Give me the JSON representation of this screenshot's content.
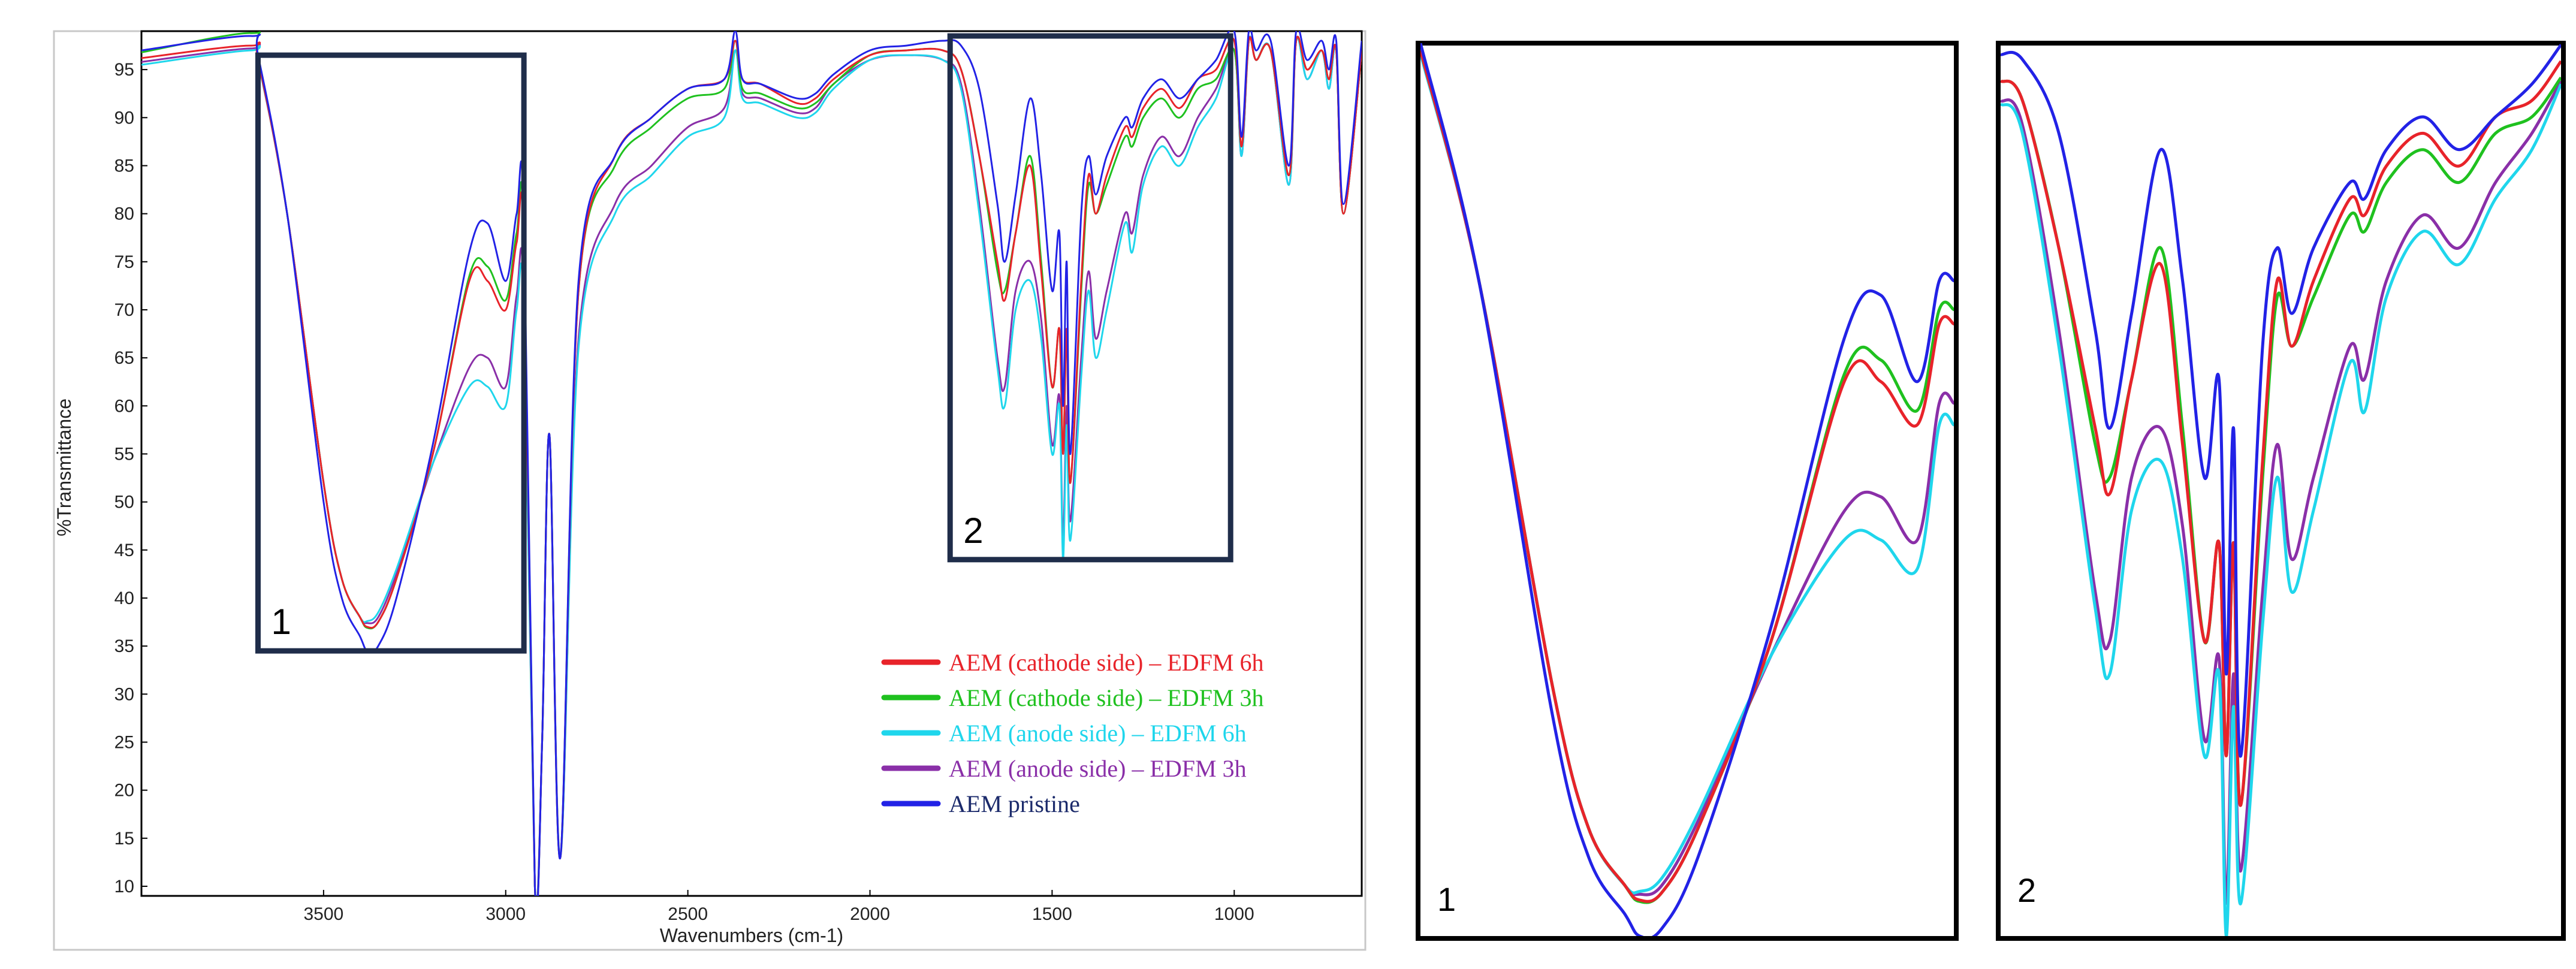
{
  "chart_data": [
    {
      "type": "line",
      "panel": "main",
      "xlabel": "Wavenumbers (cm-1)",
      "ylabel": "%Transmittance",
      "xlim": [
        4000,
        650
      ],
      "ylim": [
        9,
        99
      ],
      "x_reversed": true,
      "x_ticks": [
        "3500",
        "3000",
        "2500",
        "2000",
        "1500",
        "1000"
      ],
      "y_ticks": [
        "10",
        "15",
        "20",
        "25",
        "30",
        "35",
        "40",
        "45",
        "50",
        "55",
        "60",
        "65",
        "70",
        "75",
        "80",
        "85",
        "90",
        "95"
      ],
      "grid": false,
      "legend_placement": "bottom-right",
      "zoom_boxes": [
        {
          "label": "1",
          "x_range": [
            3680,
            2950
          ],
          "y_range": [
            34.5,
            96.5
          ]
        },
        {
          "label": "2",
          "x_range": [
            1780,
            1010
          ],
          "y_range": [
            44,
            98.5
          ]
        }
      ],
      "x": [
        4000,
        3700,
        3680,
        3600,
        3500,
        3450,
        3400,
        3380,
        3350,
        3300,
        3200,
        3100,
        3050,
        3000,
        2970,
        2950,
        2920,
        2900,
        2880,
        2850,
        2800,
        2700,
        2600,
        2500,
        2400,
        2370,
        2350,
        2300,
        2200,
        2150,
        2100,
        2000,
        1900,
        1800,
        1750,
        1700,
        1650,
        1630,
        1600,
        1560,
        1530,
        1500,
        1480,
        1470,
        1460,
        1450,
        1420,
        1400,
        1380,
        1350,
        1300,
        1280,
        1250,
        1200,
        1150,
        1100,
        1050,
        1000,
        980,
        960,
        940,
        900,
        850,
        830,
        800,
        760,
        740,
        720,
        700,
        650
      ],
      "series": [
        {
          "name": "AEM (cathode side) – EDFM 6h",
          "color": "#e8232a",
          "values": [
            96.2,
            97.5,
            96,
            80,
            52,
            42,
            38,
            37,
            37.5,
            42,
            55,
            73,
            73,
            70,
            77,
            77,
            10,
            25,
            57,
            13,
            72,
            86,
            90,
            93,
            94,
            98,
            94,
            93.5,
            91.5,
            92,
            94,
            96.5,
            97,
            97,
            95,
            86,
            75,
            71,
            78,
            85,
            74,
            62,
            68,
            55,
            68,
            52,
            73,
            84,
            80,
            84,
            89,
            88,
            91,
            93,
            91,
            94,
            95,
            98,
            87,
            98,
            96,
            97,
            84,
            98,
            95,
            97,
            94,
            97,
            80,
            97
          ]
        },
        {
          "name": "AEM (cathode side) – EDFM 3h",
          "color": "#1fc11f",
          "values": [
            96.8,
            98.8,
            96.5,
            80,
            52,
            42,
            38,
            36.9,
            37.5,
            42,
            55,
            73.5,
            74.5,
            71,
            78,
            78,
            10,
            25,
            57,
            13,
            72,
            85,
            89,
            92,
            93,
            98,
            93,
            92.5,
            91,
            91.5,
            93.5,
            96.5,
            97,
            97,
            95,
            86,
            74,
            72,
            78,
            86,
            75,
            62,
            68,
            55,
            68,
            52,
            72,
            83,
            80,
            83,
            88,
            87,
            90,
            92,
            90,
            93,
            94,
            97,
            87,
            98,
            96,
            97,
            84,
            98,
            95,
            97,
            94,
            97,
            80,
            97
          ]
        },
        {
          "name": "AEM (anode side) – EDFM 6h",
          "color": "#1fd6ec",
          "values": [
            95.5,
            97,
            95.8,
            80,
            52,
            42,
            38,
            37.6,
            38.5,
            43,
            54,
            62,
            62,
            60,
            70,
            70,
            10,
            25,
            57,
            13,
            66,
            80,
            84,
            88,
            90,
            97,
            92,
            91.5,
            90,
            90.5,
            93,
            96,
            96.5,
            96,
            93,
            80,
            64,
            60,
            70,
            73,
            67,
            55,
            60,
            44,
            58,
            46,
            63,
            72,
            65,
            70,
            79,
            76,
            83,
            87,
            85,
            89,
            92,
            97,
            86,
            98,
            96,
            97,
            83,
            98,
            94,
            97,
            93,
            97,
            80,
            97
          ]
        },
        {
          "name": "AEM (anode side) – EDFM 3h",
          "color": "#8a2fa8",
          "values": [
            95.8,
            97.2,
            96,
            80,
            52,
            42,
            38,
            37.4,
            38,
            42.5,
            54,
            64,
            65,
            62,
            71.5,
            71.5,
            10,
            25,
            57,
            13,
            67,
            81,
            85,
            89,
            91,
            97,
            92.5,
            92,
            90.5,
            91,
            93.5,
            96,
            96.5,
            96,
            93.5,
            81,
            65,
            62,
            72,
            75,
            69,
            56,
            61,
            46,
            60,
            48,
            65,
            74,
            67,
            72,
            80,
            78,
            84,
            88,
            86,
            90,
            93,
            97,
            86,
            98,
            96,
            97,
            83,
            98,
            94,
            97,
            93,
            97,
            80,
            97
          ]
        },
        {
          "name": "AEM pristine",
          "color": "#2222e6",
          "values": [
            97,
            98.5,
            96.5,
            80,
            50,
            40,
            36,
            34.5,
            35,
            40,
            56,
            76,
            79,
            73,
            80,
            80,
            10,
            25,
            57,
            13,
            73,
            86,
            90,
            93,
            94,
            99,
            94,
            93.5,
            92,
            92.5,
            94.5,
            97,
            97.5,
            98,
            97.5,
            93,
            81,
            75,
            82,
            92,
            84,
            72,
            78,
            60,
            75,
            55,
            80,
            86,
            82,
            86,
            90,
            89,
            92,
            94,
            92,
            94,
            96,
            99,
            88,
            99,
            97,
            98,
            85,
            99,
            96,
            98,
            95,
            98,
            81,
            98
          ]
        }
      ]
    },
    {
      "type": "line",
      "panel": "zoom",
      "label": "1",
      "xlim": [
        3680,
        2950
      ],
      "ylim": [
        34.5,
        96.5
      ],
      "x_reversed": true
    },
    {
      "type": "line",
      "panel": "zoom",
      "label": "2",
      "xlim": [
        1780,
        1010
      ],
      "ylim": [
        44,
        98.5
      ],
      "x_reversed": true
    }
  ]
}
